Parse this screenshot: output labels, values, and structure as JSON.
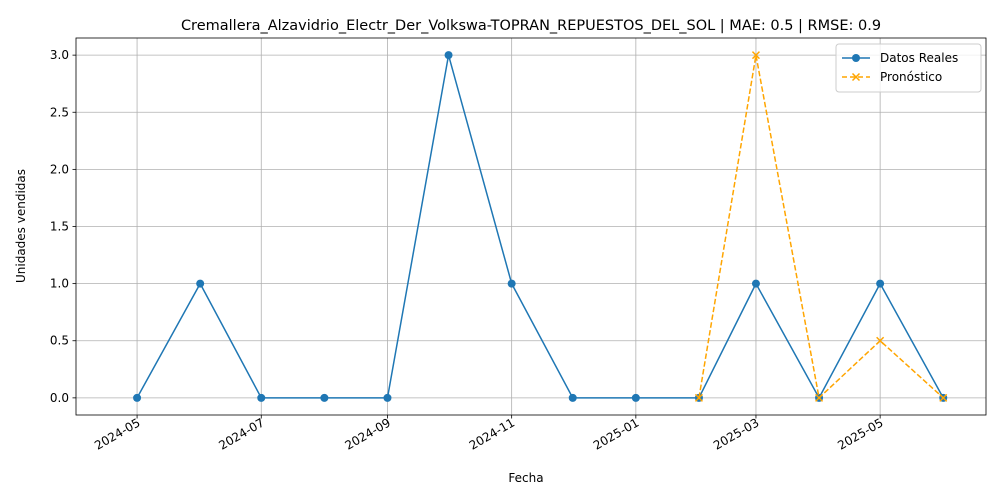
{
  "chart_data": {
    "type": "line",
    "title": "Cremallera_Alzavidrio_Electr_Der_Volkswa-TOPRAN_REPUESTOS_DEL_SOL | MAE: 0.5 | RMSE: 0.9",
    "xlabel": "Fecha",
    "ylabel": "Unidades vendidas",
    "xlim": [
      "2024-04-01",
      "2025-06-22"
    ],
    "ylim": [
      -0.15,
      3.15
    ],
    "xticks": [
      "2024-05-01",
      "2024-07-01",
      "2024-09-01",
      "2024-11-01",
      "2025-01-01",
      "2025-03-01",
      "2025-05-01"
    ],
    "xtick_labels": [
      "2024-05",
      "2024-07",
      "2024-09",
      "2024-11",
      "2025-01",
      "2025-03",
      "2025-05"
    ],
    "yticks": [
      0.0,
      0.5,
      1.0,
      1.5,
      2.0,
      2.5,
      3.0
    ],
    "ytick_labels": [
      "0.0",
      "0.5",
      "1.0",
      "1.5",
      "2.0",
      "2.5",
      "3.0"
    ],
    "grid": true,
    "legend_position": "top-right",
    "series": [
      {
        "name": "Datos Reales",
        "color": "#1f77b4",
        "style": "solid",
        "marker": "circle",
        "x": [
          "2024-05-01",
          "2024-06-01",
          "2024-07-01",
          "2024-08-01",
          "2024-09-01",
          "2024-10-01",
          "2024-11-01",
          "2024-12-01",
          "2025-01-01",
          "2025-02-01",
          "2025-03-01",
          "2025-04-01",
          "2025-05-01",
          "2025-06-01"
        ],
        "y": [
          0,
          1,
          0,
          0,
          0,
          3,
          1,
          0,
          0,
          0,
          1,
          0,
          1,
          0
        ]
      },
      {
        "name": "Pronóstico",
        "color": "#ffa500",
        "style": "dashed",
        "marker": "x",
        "x": [
          "2025-02-01",
          "2025-03-01",
          "2025-04-01",
          "2025-05-01",
          "2025-06-01"
        ],
        "y": [
          0,
          3,
          0,
          0.5,
          0
        ]
      }
    ]
  }
}
